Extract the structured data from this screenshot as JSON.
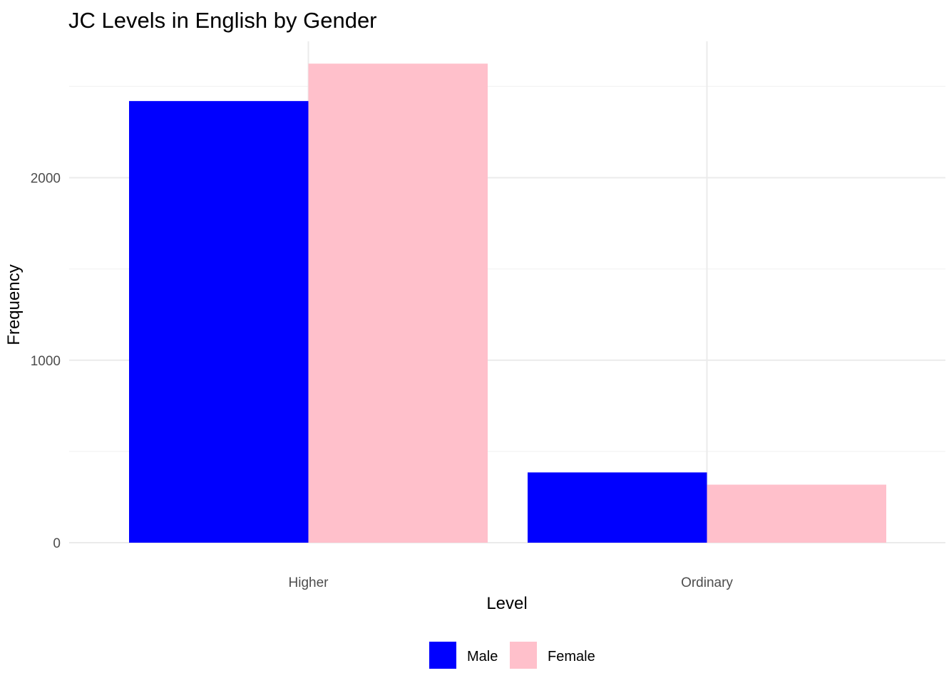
{
  "chart_data": {
    "type": "bar",
    "title": "JC Levels in English by Gender",
    "xlabel": "Level",
    "ylabel": "Frequency",
    "categories": [
      "Higher",
      "Ordinary"
    ],
    "series": [
      {
        "name": "Male",
        "color": "#0000FF",
        "values": [
          2420,
          385
        ]
      },
      {
        "name": "Female",
        "color": "#FFC0CB",
        "values": [
          2625,
          318
        ]
      }
    ],
    "yticks": [
      0,
      1000,
      2000
    ],
    "yticks_text": [
      "0",
      "1000",
      "2000"
    ],
    "ylim": [
      0,
      2750
    ],
    "grid": true,
    "legend_position": "bottom"
  }
}
